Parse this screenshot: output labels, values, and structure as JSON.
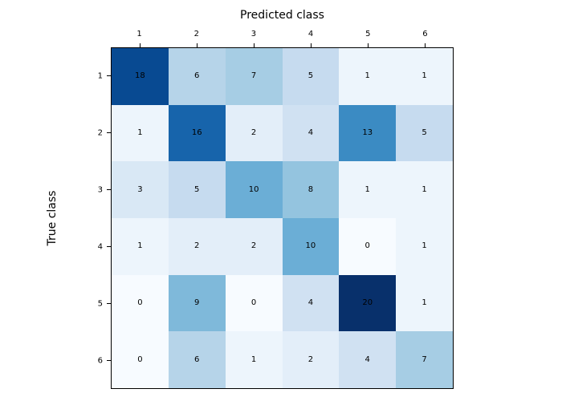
{
  "chart_data": {
    "type": "heatmap",
    "title": "Predicted class",
    "xlabel": "Predicted class",
    "ylabel": "True class",
    "x_tick_labels": [
      "1",
      "2",
      "3",
      "4",
      "5",
      "6"
    ],
    "y_tick_labels": [
      "1",
      "2",
      "3",
      "4",
      "5",
      "6"
    ],
    "matrix": [
      [
        18,
        6,
        7,
        5,
        1,
        1
      ],
      [
        1,
        16,
        2,
        4,
        13,
        5
      ],
      [
        3,
        5,
        10,
        8,
        1,
        1
      ],
      [
        1,
        2,
        2,
        10,
        0,
        1
      ],
      [
        0,
        9,
        0,
        4,
        20,
        1
      ],
      [
        0,
        6,
        1,
        2,
        4,
        7
      ]
    ],
    "vmin": 0,
    "vmax": 20,
    "colormap": {
      "name": "Blues",
      "stops": [
        {
          "t": 0.0,
          "hex": "#f7fbff"
        },
        {
          "t": 0.125,
          "hex": "#deebf7"
        },
        {
          "t": 0.25,
          "hex": "#c6dbef"
        },
        {
          "t": 0.375,
          "hex": "#9ecae1"
        },
        {
          "t": 0.5,
          "hex": "#6baed6"
        },
        {
          "t": 0.625,
          "hex": "#4292c6"
        },
        {
          "t": 0.75,
          "hex": "#2171b5"
        },
        {
          "t": 0.875,
          "hex": "#08519c"
        },
        {
          "t": 1.0,
          "hex": "#08306b"
        }
      ]
    },
    "annotation_color": "#000000",
    "frame_color": "#000000",
    "background_color": "#ffffff",
    "grid": false,
    "legend": "none"
  }
}
